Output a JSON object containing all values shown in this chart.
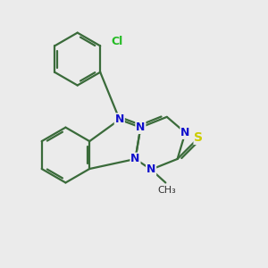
{
  "background_color": "#ebebeb",
  "bond_color_dark": "#3a6b3a",
  "bond_width": 1.6,
  "atom_colors": {
    "N": "#1010cc",
    "S": "#cccc00",
    "Cl": "#22bb22",
    "C": "#3a6b3a"
  },
  "font_size_N": 9,
  "font_size_S": 10,
  "font_size_Cl": 9,
  "font_size_methyl": 8
}
